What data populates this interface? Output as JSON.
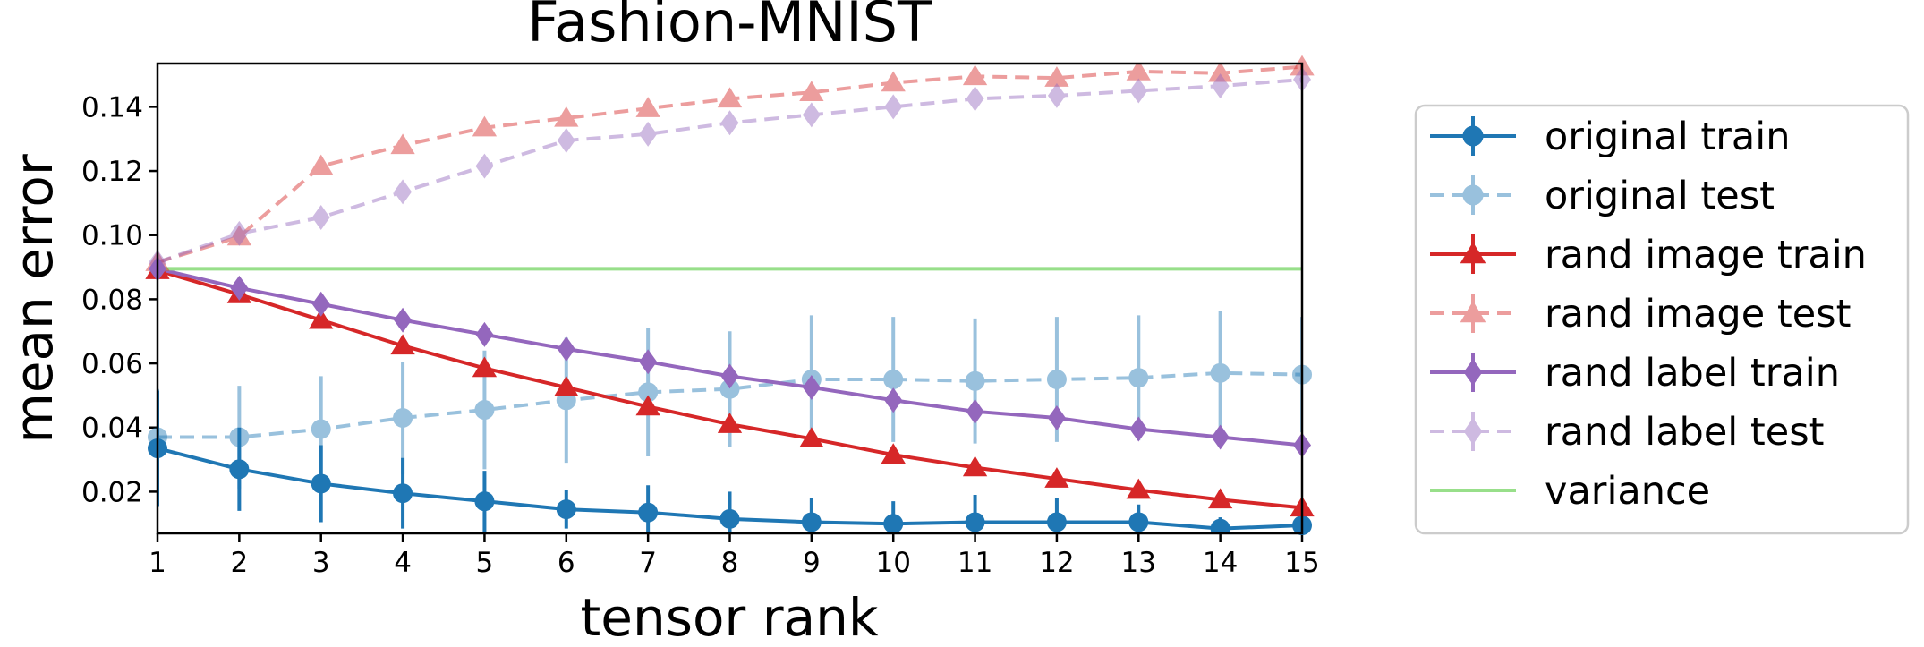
{
  "chart_data": {
    "type": "line",
    "title": "Fashion-MNIST",
    "xlabel": "tensor rank",
    "ylabel": "mean error",
    "x": [
      1,
      2,
      3,
      4,
      5,
      6,
      7,
      8,
      9,
      10,
      11,
      12,
      13,
      14,
      15
    ],
    "xlim": [
      1,
      15
    ],
    "ylim": [
      0.007,
      0.1535
    ],
    "xticks": [
      "1",
      "2",
      "3",
      "4",
      "5",
      "6",
      "7",
      "8",
      "9",
      "10",
      "11",
      "12",
      "13",
      "14",
      "15"
    ],
    "yticks": [
      {
        "value": 0.02,
        "label": "0.02"
      },
      {
        "value": 0.04,
        "label": "0.04"
      },
      {
        "value": 0.06,
        "label": "0.06"
      },
      {
        "value": 0.08,
        "label": "0.08"
      },
      {
        "value": 0.1,
        "label": "0.10"
      },
      {
        "value": 0.12,
        "label": "0.12"
      },
      {
        "value": 0.14,
        "label": "0.14"
      }
    ],
    "grid": false,
    "legend_position": "outside-right",
    "series": [
      {
        "name": "original train",
        "color": "#1f77b4",
        "style": "solid",
        "marker": "circle",
        "alpha": 1,
        "values": [
          0.0335,
          0.027,
          0.0225,
          0.0195,
          0.017,
          0.0145,
          0.0135,
          0.0115,
          0.0105,
          0.01,
          0.0105,
          0.0105,
          0.0105,
          0.0085,
          0.0095
        ],
        "errors": [
          0.018,
          0.013,
          0.012,
          0.011,
          0.0095,
          0.006,
          0.0085,
          0.0085,
          0.0075,
          0.007,
          0.0085,
          0.0075,
          0.0055,
          0.0035,
          0.0045
        ]
      },
      {
        "name": "original test",
        "color": "#1f77b4",
        "style": "dashed",
        "marker": "circle",
        "alpha": 0.45,
        "values": [
          0.037,
          0.037,
          0.0395,
          0.043,
          0.0455,
          0.0485,
          0.051,
          0.052,
          0.055,
          0.055,
          0.0545,
          0.055,
          0.0555,
          0.057,
          0.0565
        ],
        "errors": [
          0.015,
          0.016,
          0.0165,
          0.0175,
          0.0185,
          0.0195,
          0.02,
          0.018,
          0.02,
          0.0195,
          0.0195,
          0.0195,
          0.0195,
          0.0195,
          0.018
        ]
      },
      {
        "name": "rand image train",
        "color": "#d62728",
        "style": "solid",
        "marker": "triangle",
        "alpha": 1,
        "values": [
          0.089,
          0.0815,
          0.0735,
          0.0655,
          0.0585,
          0.0525,
          0.0465,
          0.041,
          0.0365,
          0.0315,
          0.0275,
          0.024,
          0.0205,
          0.0175,
          0.015
        ],
        "errors": [
          0.001,
          0.001,
          0.001,
          0.001,
          0.001,
          0.001,
          0.001,
          0.001,
          0.001,
          0.001,
          0.001,
          0.001,
          0.001,
          0.001,
          0.001
        ]
      },
      {
        "name": "rand image test",
        "color": "#d62728",
        "style": "dashed",
        "marker": "triangle",
        "alpha": 0.45,
        "values": [
          0.0915,
          0.0995,
          0.1215,
          0.128,
          0.1335,
          0.1365,
          0.1395,
          0.1425,
          0.1445,
          0.1475,
          0.1495,
          0.149,
          0.151,
          0.1505,
          0.1525
        ],
        "errors": [
          0.001,
          0.001,
          0.001,
          0.001,
          0.001,
          0.001,
          0.001,
          0.001,
          0.001,
          0.001,
          0.001,
          0.001,
          0.001,
          0.001,
          0.001
        ]
      },
      {
        "name": "rand label train",
        "color": "#9467bd",
        "style": "solid",
        "marker": "diamond",
        "alpha": 1,
        "values": [
          0.0895,
          0.0835,
          0.0785,
          0.0735,
          0.069,
          0.0645,
          0.0605,
          0.056,
          0.0525,
          0.0485,
          0.045,
          0.043,
          0.0395,
          0.037,
          0.0345
        ],
        "errors": [
          0.001,
          0.001,
          0.001,
          0.001,
          0.001,
          0.001,
          0.001,
          0.001,
          0.001,
          0.001,
          0.001,
          0.001,
          0.001,
          0.001,
          0.001
        ]
      },
      {
        "name": "rand label test",
        "color": "#9467bd",
        "style": "dashed",
        "marker": "diamond",
        "alpha": 0.45,
        "values": [
          0.0915,
          0.1005,
          0.1055,
          0.1135,
          0.1215,
          0.1295,
          0.1315,
          0.135,
          0.1375,
          0.14,
          0.1425,
          0.1435,
          0.145,
          0.1465,
          0.1485
        ],
        "errors": [
          0.001,
          0.001,
          0.001,
          0.001,
          0.001,
          0.001,
          0.001,
          0.001,
          0.001,
          0.001,
          0.001,
          0.001,
          0.001,
          0.001,
          0.001
        ]
      },
      {
        "name": "variance",
        "color": "#98df8a",
        "style": "solid",
        "marker": "none",
        "alpha": 1,
        "values": [
          0.0895,
          0.0895,
          0.0895,
          0.0895,
          0.0895,
          0.0895,
          0.0895,
          0.0895,
          0.0895,
          0.0895,
          0.0895,
          0.0895,
          0.0895,
          0.0895,
          0.0895
        ],
        "errors": []
      }
    ]
  }
}
